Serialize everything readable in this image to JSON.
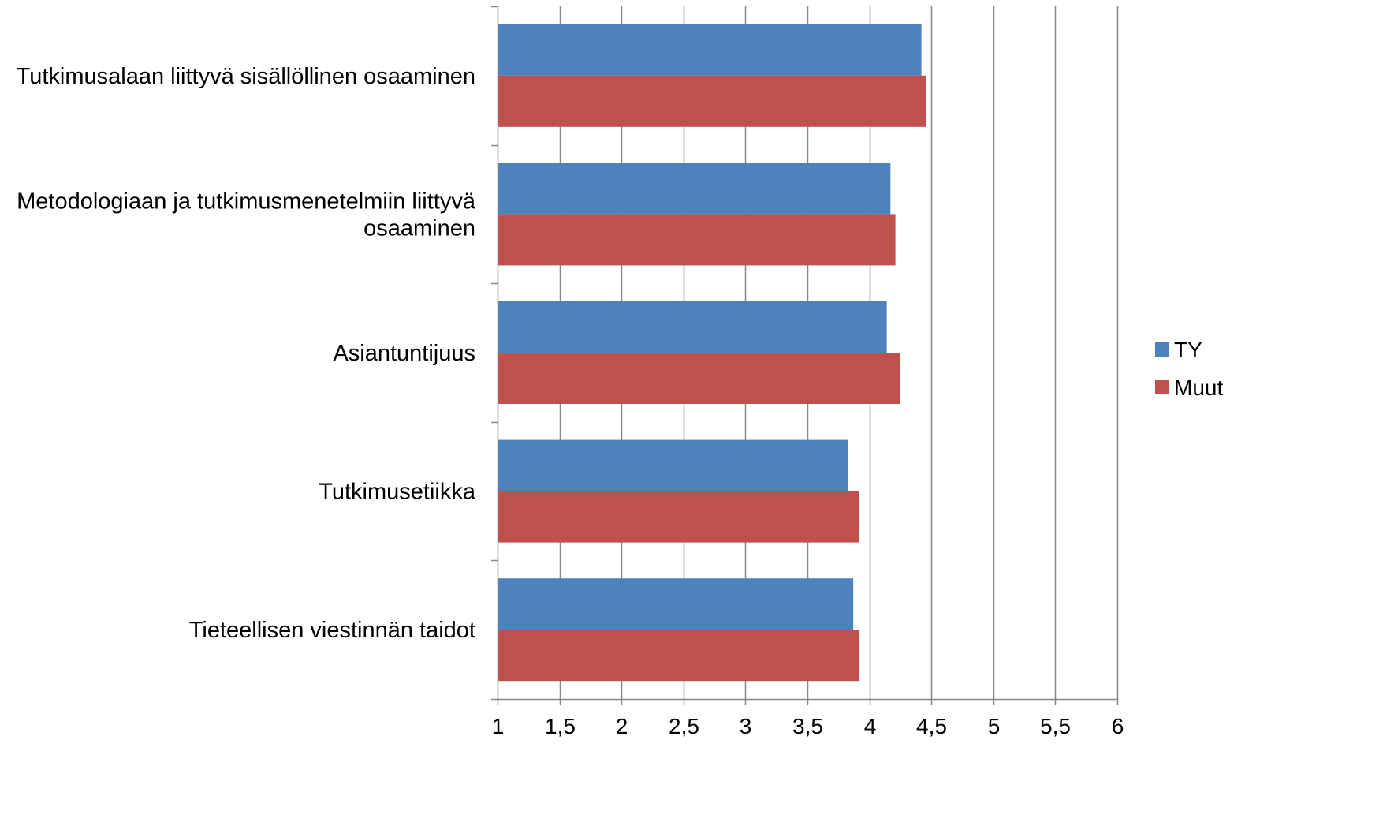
{
  "chart_data": {
    "type": "bar",
    "orientation": "horizontal",
    "categories": [
      "Tutkimusalaan liittyvä sisällöllinen osaaminen",
      "Metodologiaan ja tutkimusmenetelmiin liittyvä osaaminen",
      "Asiantuntijuus",
      "Tutkimusetiikka",
      "Tieteellisen viestinnän taidot"
    ],
    "category_lines": [
      [
        "Tutkimusalaan liittyvä sisällöllinen osaaminen"
      ],
      [
        "Metodologiaan ja tutkimusmenetelmiin liittyvä",
        "osaaminen"
      ],
      [
        "Asiantuntijuus"
      ],
      [
        "Tutkimusetiikka"
      ],
      [
        "Tieteellisen viestinnän taidot"
      ]
    ],
    "series": [
      {
        "name": "TY",
        "color": "#4f81bd",
        "values": [
          4.42,
          4.17,
          4.14,
          3.83,
          3.87
        ]
      },
      {
        "name": "Muut",
        "color": "#c0504d",
        "values": [
          4.46,
          4.21,
          4.25,
          3.92,
          3.92
        ]
      }
    ],
    "xlim": [
      1,
      6
    ],
    "xticks": [
      1,
      1.5,
      2,
      2.5,
      3,
      3.5,
      4,
      4.5,
      5,
      5.5,
      6
    ],
    "xtick_labels": [
      "1",
      "1,5",
      "2",
      "2,5",
      "3",
      "3,5",
      "4",
      "4,5",
      "5",
      "5,5",
      "6"
    ],
    "grid": "vertical",
    "gridline_color": "#868686",
    "legend_position": "right",
    "title": "",
    "xlabel": "",
    "ylabel": ""
  }
}
